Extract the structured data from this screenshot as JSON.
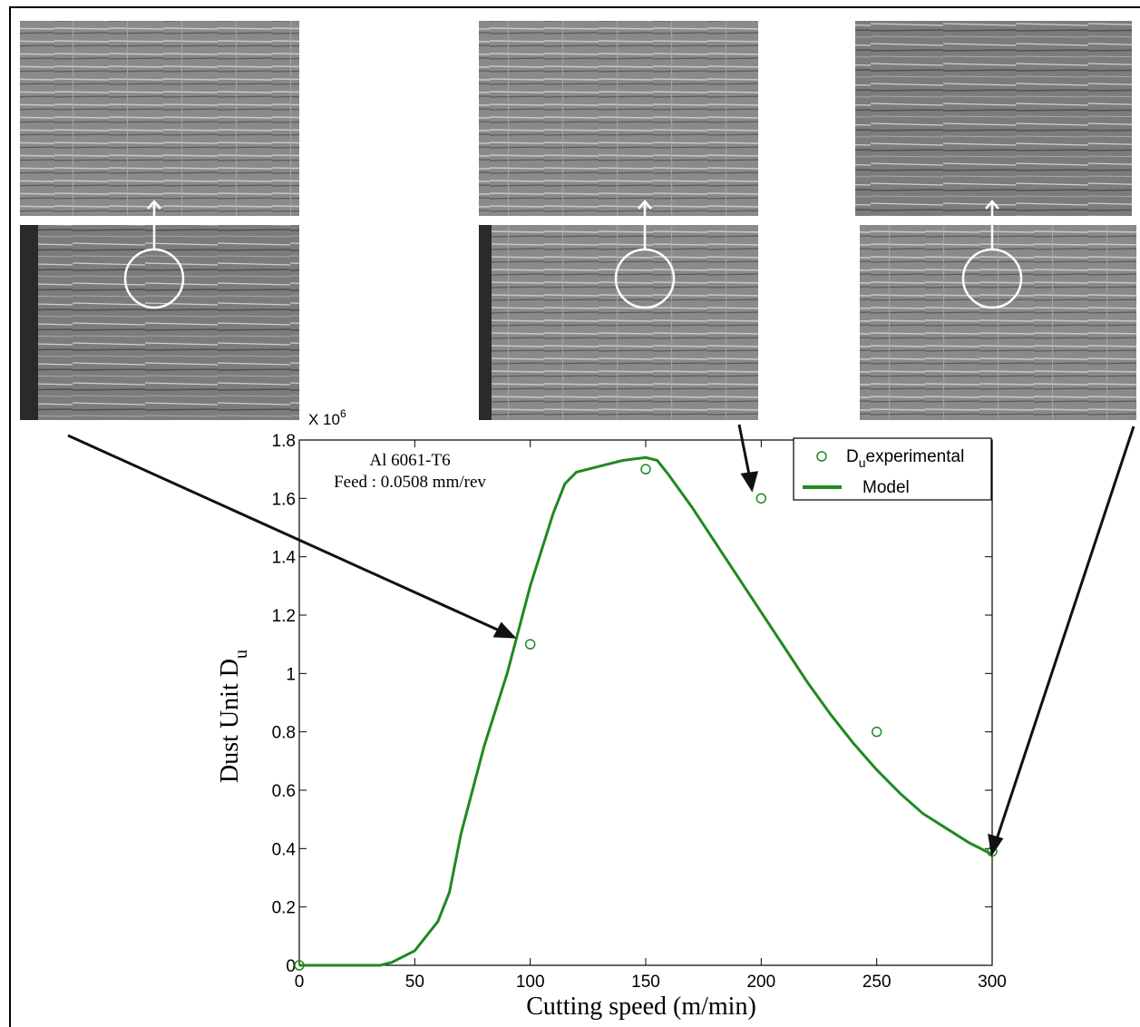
{
  "chart_data": {
    "type": "line",
    "xlabel": "Cutting speed (m/min)",
    "ylabel": "Dust Unit D",
    "ylabel_subscript": "u",
    "y_multiplier": "X 10",
    "y_multiplier_exponent": "6",
    "annotations": [
      "Al 6061-T6",
      "Feed : 0.0508 mm/rev"
    ],
    "xlim": [
      0,
      300
    ],
    "xticks": [
      0,
      50,
      100,
      150,
      200,
      250,
      300
    ],
    "ylim": [
      0,
      1.8
    ],
    "yticks": [
      0,
      0.2,
      0.4,
      0.6,
      0.8,
      1,
      1.2,
      1.4,
      1.6,
      1.8
    ],
    "legend": "upper right",
    "series": [
      {
        "type": "scatter",
        "name": "D",
        "name_subscript": "u",
        "name_suffix": "experimental",
        "color": "#1f8a1f",
        "x": [
          0,
          100,
          150,
          200,
          250,
          300
        ],
        "values": [
          0,
          1.1,
          1.7,
          1.6,
          0.8,
          0.39
        ]
      },
      {
        "type": "line",
        "name": "Model",
        "color": "#1f8a1f",
        "x": [
          0,
          35,
          40,
          50,
          60,
          65,
          70,
          80,
          90,
          100,
          110,
          115,
          120,
          130,
          140,
          150,
          155,
          160,
          170,
          180,
          190,
          200,
          210,
          220,
          230,
          240,
          250,
          260,
          270,
          280,
          290,
          300
        ],
        "values": [
          0,
          0,
          0.01,
          0.05,
          0.15,
          0.25,
          0.45,
          0.75,
          1.0,
          1.3,
          1.55,
          1.65,
          1.69,
          1.71,
          1.73,
          1.74,
          1.73,
          1.68,
          1.57,
          1.45,
          1.33,
          1.21,
          1.09,
          0.97,
          0.86,
          0.76,
          0.67,
          0.59,
          0.52,
          0.47,
          0.42,
          0.38
        ]
      }
    ]
  }
}
